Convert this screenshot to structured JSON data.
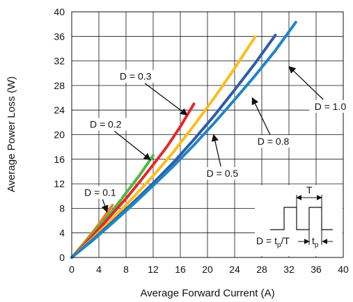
{
  "chart_data": {
    "type": "line",
    "xlabel": "Average Forward Current (A)",
    "ylabel": "Average Power Loss (W)",
    "xlim": [
      0,
      40
    ],
    "ylim": [
      0,
      40
    ],
    "xticks": [
      "0",
      "4",
      "8",
      "12",
      "16",
      "20",
      "24",
      "28",
      "32",
      "36",
      "40"
    ],
    "yticks": [
      "0",
      "4",
      "8",
      "12",
      "16",
      "20",
      "24",
      "28",
      "32",
      "36",
      "40"
    ],
    "grid": true,
    "series": [
      {
        "name": "D = 0.1",
        "color": "#F47B20",
        "x": [
          0,
          2,
          4,
          6
        ],
        "y": [
          0,
          2.6,
          5.4,
          8.5
        ]
      },
      {
        "name": "D = 0.2",
        "color": "#4DB848",
        "x": [
          0,
          2,
          4,
          6,
          8,
          10,
          12
        ],
        "y": [
          0,
          2.4,
          5.0,
          7.6,
          10.5,
          13.4,
          16.6
        ]
      },
      {
        "name": "D = 0.3",
        "color": "#E8262A",
        "x": [
          0,
          2,
          4,
          6,
          8,
          10,
          12,
          14,
          16,
          18
        ],
        "y": [
          0,
          2.2,
          4.6,
          7.1,
          9.6,
          12.3,
          15.1,
          18.0,
          21.3,
          25.0
        ]
      },
      {
        "name": "D = 0.5",
        "color": "#F9BE1B",
        "x": [
          0,
          3,
          6,
          9,
          12,
          15,
          18,
          21,
          24,
          27
        ],
        "y": [
          0,
          3.0,
          6.3,
          9.7,
          13.3,
          17.2,
          21.5,
          26.0,
          30.8,
          35.9
        ]
      },
      {
        "name": "D = 0.8",
        "color": "#2E5DA8",
        "x": [
          0,
          3,
          6,
          9,
          12,
          15,
          18,
          21,
          24,
          27,
          30
        ],
        "y": [
          0,
          2.8,
          5.8,
          8.9,
          12.1,
          15.5,
          19.2,
          23.1,
          27.3,
          31.6,
          36.2
        ]
      },
      {
        "name": "D = 1.0",
        "color": "#1E86C8",
        "x": [
          0,
          3,
          6,
          9,
          12,
          15,
          18,
          21,
          24,
          27,
          30,
          33
        ],
        "y": [
          0,
          2.7,
          5.6,
          8.6,
          11.7,
          14.9,
          18.3,
          21.9,
          25.7,
          29.6,
          33.7,
          38.3
        ]
      }
    ],
    "annotations": [
      {
        "text": "D = 0.1",
        "label_at": [
          4.2,
          10.6
        ],
        "arrow_to": [
          5.2,
          7.4
        ]
      },
      {
        "text": "D = 0.2",
        "label_at": [
          5.0,
          21.7
        ],
        "arrow_to": [
          11.6,
          15.9
        ]
      },
      {
        "text": "D = 0.3",
        "label_at": [
          9.4,
          29.5
        ],
        "arrow_to": [
          17.0,
          23.2
        ]
      },
      {
        "text": "D = 0.5",
        "label_at": [
          22.2,
          13.7
        ],
        "arrow_to": [
          20.9,
          20.0
        ]
      },
      {
        "text": "D = 0.8",
        "label_at": [
          29.7,
          18.9
        ],
        "arrow_to": [
          26.6,
          26.0
        ]
      },
      {
        "text": "D = 1.0",
        "label_at": [
          38.1,
          24.6
        ],
        "arrow_to": [
          32.0,
          31.1
        ]
      }
    ],
    "inset": {
      "period_label": "T",
      "duty_label_main": "D = t",
      "duty_label_sub": "p",
      "duty_label_tail": "/T",
      "tp_label_main": "t",
      "tp_label_sub": "p"
    }
  }
}
